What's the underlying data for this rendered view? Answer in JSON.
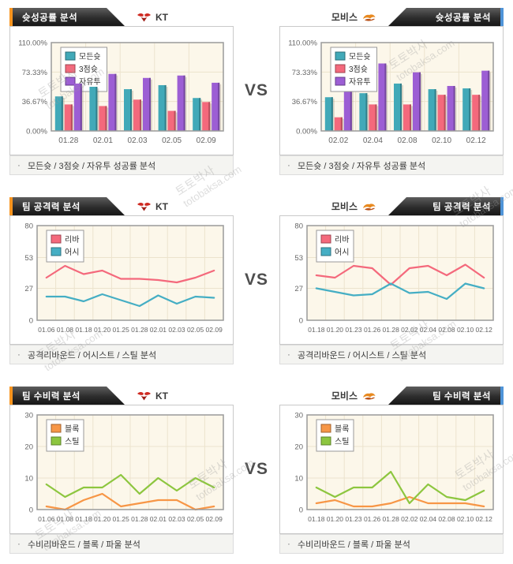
{
  "page": {
    "vs_label": "VS",
    "caption_bullet": "·",
    "watermark": {
      "site_name": "토토박사",
      "site_url": "totobaksa.com"
    }
  },
  "teams": {
    "left": {
      "name": "KT"
    },
    "right": {
      "name": "모비스"
    }
  },
  "colors": {
    "all_shots": "#41a9b8",
    "three_point": "#f4697c",
    "free_throw": "#9c5ed4",
    "rebound": "#f4697c",
    "assist": "#45aec4",
    "block": "#f79646",
    "steal": "#8dc63f",
    "accent_orange": "#f7941e",
    "accent_blue": "#4f94d8",
    "plot_bg": "#fcf7ea",
    "grid": "#ece3cd",
    "axis_text": "#666666"
  },
  "rows": [
    {
      "section_title": "슛성공률 분석",
      "caption": "모든슛 / 3점슛 / 자유투 성공률 분석",
      "left_chart": 0,
      "right_chart": 1
    },
    {
      "section_title": "팀 공격력 분석",
      "caption": "공격리바운드 / 어시스트 / 스틸 분석",
      "left_chart": 2,
      "right_chart": 3
    },
    {
      "section_title": "팀 수비력 분석",
      "caption": "수비리바운드 / 블록 / 파울 분석",
      "left_chart": 4,
      "right_chart": 5
    }
  ],
  "chart_data": [
    {
      "id": "kt-shooting",
      "type": "bar",
      "team": "KT",
      "title": "슛성공률 분석",
      "categories": [
        "01.28",
        "02.01",
        "02.03",
        "02.05",
        "02.09"
      ],
      "series": [
        {
          "name": "모든슛",
          "color": "#41a9b8",
          "values": [
            43,
            55,
            52,
            57,
            41
          ]
        },
        {
          "name": "3점슛",
          "color": "#f4697c",
          "values": [
            33,
            31,
            39,
            25,
            36
          ]
        },
        {
          "name": "자유투",
          "color": "#9c5ed4",
          "values": [
            59,
            71,
            66,
            69,
            60
          ]
        }
      ],
      "ylim": [
        0,
        110
      ],
      "ytick_values": [
        0,
        36.67,
        73.33,
        110
      ],
      "ytick_labels": [
        "0.00%",
        "36.67%",
        "73.33%",
        "110.00%"
      ],
      "legend_position": "top-left",
      "legend_behind_series": true,
      "grid": true
    },
    {
      "id": "mobis-shooting",
      "type": "bar",
      "team": "모비스",
      "title": "슛성공률 분석",
      "categories": [
        "02.02",
        "02.04",
        "02.08",
        "02.10",
        "02.12"
      ],
      "series": [
        {
          "name": "모든슛",
          "color": "#41a9b8",
          "values": [
            42,
            47,
            59,
            52,
            53
          ]
        },
        {
          "name": "3점슛",
          "color": "#f4697c",
          "values": [
            17,
            33,
            33,
            45,
            45
          ]
        },
        {
          "name": "자유투",
          "color": "#9c5ed4",
          "values": [
            58,
            84,
            73,
            56,
            75
          ]
        }
      ],
      "ylim": [
        0,
        110
      ],
      "ytick_values": [
        0,
        36.67,
        73.33,
        110
      ],
      "ytick_labels": [
        "0.00%",
        "36.67%",
        "73.33%",
        "110.00%"
      ],
      "legend_position": "top-left",
      "legend_behind_series": false,
      "grid": true
    },
    {
      "id": "kt-offense",
      "type": "line",
      "team": "KT",
      "title": "팀 공격력 분석",
      "categories": [
        "01.06",
        "01.08",
        "01.18",
        "01.20",
        "01.25",
        "01.28",
        "02.01",
        "02.03",
        "02.05",
        "02.09"
      ],
      "series": [
        {
          "name": "리바",
          "color": "#f4697c",
          "values": [
            36,
            46,
            39,
            42,
            35,
            35,
            34,
            32,
            36,
            42
          ]
        },
        {
          "name": "어시",
          "color": "#45aec4",
          "values": [
            20,
            20,
            16,
            22,
            17,
            12,
            21,
            14,
            20,
            19
          ]
        }
      ],
      "ylim": [
        0,
        80
      ],
      "ytick_values": [
        0,
        27,
        53,
        80
      ],
      "ytick_labels": [
        "0",
        "27",
        "53",
        "80"
      ],
      "legend_position": "top-left",
      "legend_behind_series": false,
      "grid": true
    },
    {
      "id": "mobis-offense",
      "type": "line",
      "team": "모비스",
      "title": "팀 공격력 분석",
      "categories": [
        "01.18",
        "01.20",
        "01.23",
        "01.26",
        "01.28",
        "02.02",
        "02.04",
        "02.08",
        "02.10",
        "02.12"
      ],
      "series": [
        {
          "name": "리바",
          "color": "#f4697c",
          "values": [
            38,
            36,
            46,
            44,
            30,
            44,
            46,
            38,
            47,
            36
          ]
        },
        {
          "name": "어시",
          "color": "#45aec4",
          "values": [
            27,
            24,
            21,
            22,
            31,
            23,
            24,
            18,
            31,
            27
          ]
        }
      ],
      "ylim": [
        0,
        80
      ],
      "ytick_values": [
        0,
        27,
        53,
        80
      ],
      "ytick_labels": [
        "0",
        "27",
        "53",
        "80"
      ],
      "legend_position": "top-left",
      "legend_behind_series": false,
      "grid": true
    },
    {
      "id": "kt-defense",
      "type": "line",
      "team": "KT",
      "title": "팀 수비력 분석",
      "categories": [
        "01.06",
        "01.08",
        "01.18",
        "01.20",
        "01.25",
        "01.28",
        "02.01",
        "02.03",
        "02.05",
        "02.09"
      ],
      "series": [
        {
          "name": "블록",
          "color": "#f79646",
          "values": [
            1,
            0,
            3,
            5,
            1,
            2,
            3,
            3,
            0,
            1
          ]
        },
        {
          "name": "스틸",
          "color": "#8dc63f",
          "values": [
            8,
            4,
            7,
            7,
            11,
            5,
            10,
            6,
            10,
            7
          ]
        }
      ],
      "ylim": [
        0,
        30
      ],
      "ytick_values": [
        0,
        10,
        20,
        30
      ],
      "ytick_labels": [
        "0",
        "10",
        "20",
        "30"
      ],
      "legend_position": "top-left",
      "legend_behind_series": false,
      "grid": true
    },
    {
      "id": "mobis-defense",
      "type": "line",
      "team": "모비스",
      "title": "팀 수비력 분석",
      "categories": [
        "01.18",
        "01.20",
        "01.23",
        "01.26",
        "01.28",
        "02.02",
        "02.04",
        "02.08",
        "02.10",
        "02.12"
      ],
      "series": [
        {
          "name": "블록",
          "color": "#f79646",
          "values": [
            2,
            3,
            1,
            1,
            2,
            4,
            2,
            2,
            2,
            1
          ]
        },
        {
          "name": "스틸",
          "color": "#8dc63f",
          "values": [
            7,
            4,
            7,
            7,
            12,
            2,
            8,
            4,
            3,
            6
          ]
        }
      ],
      "ylim": [
        0,
        30
      ],
      "ytick_values": [
        0,
        10,
        20,
        30
      ],
      "ytick_labels": [
        "0",
        "10",
        "20",
        "30"
      ],
      "legend_position": "top-left",
      "legend_behind_series": false,
      "grid": true
    }
  ]
}
